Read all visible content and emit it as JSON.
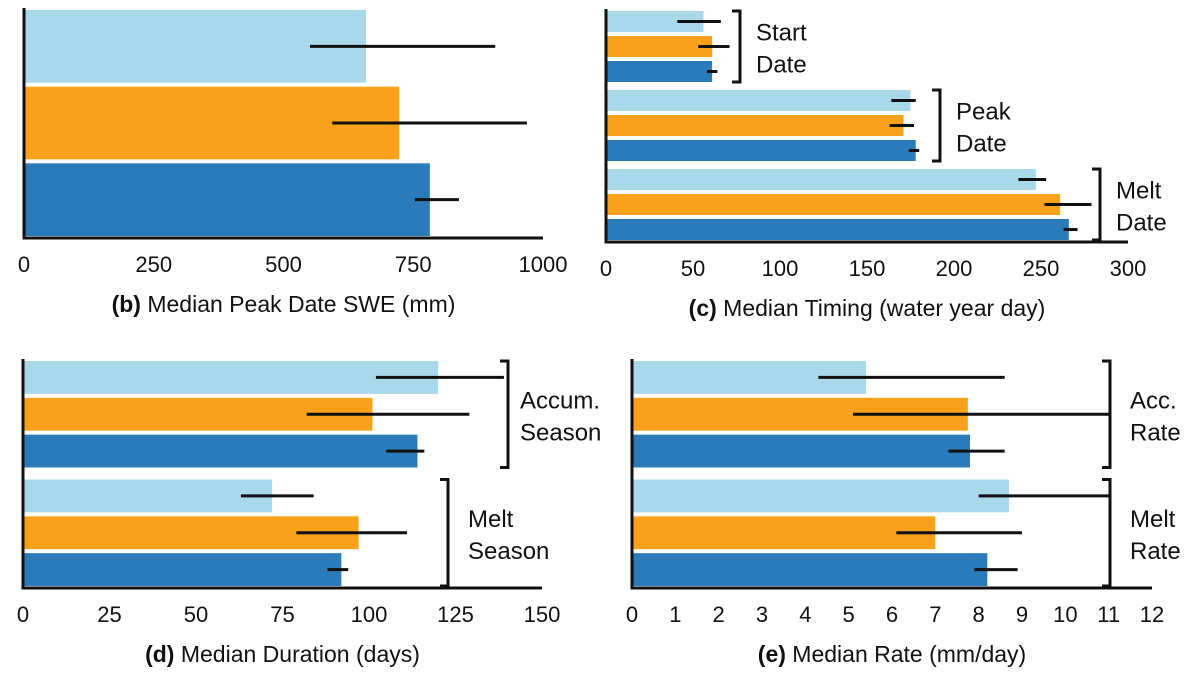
{
  "colors": [
    "#a8d8ea",
    "#f9a11b",
    "#2b7bba"
  ],
  "chart_data": [
    {
      "id": "b",
      "type": "bar",
      "orientation": "horizontal",
      "panel_label": "(b)",
      "xlabel": "Median Peak Date SWE (mm)",
      "xlim": [
        0,
        1000
      ],
      "ticks": [
        0,
        250,
        500,
        750,
        1000
      ],
      "groups": [
        {
          "label": [],
          "bars": [
            {
              "value": 659,
              "err": [
                551,
                908
              ]
            },
            {
              "value": 723,
              "err": [
                594,
                969
              ]
            },
            {
              "value": 782,
              "err": [
                753,
                838
              ]
            }
          ]
        }
      ]
    },
    {
      "id": "c",
      "type": "bar",
      "orientation": "horizontal",
      "panel_label": "(c)",
      "xlabel": "Median Timing (water year day)",
      "xlim": [
        0,
        300
      ],
      "ticks": [
        0,
        50,
        100,
        150,
        200,
        250,
        300
      ],
      "groups": [
        {
          "label": [
            "Start",
            "Date"
          ],
          "bars": [
            {
              "value": 56,
              "err": [
                41,
                66
              ]
            },
            {
              "value": 61,
              "err": [
                53,
                71
              ]
            },
            {
              "value": 61,
              "err": [
                58,
                64
              ]
            }
          ]
        },
        {
          "label": [
            "Peak",
            "Date"
          ],
          "bars": [
            {
              "value": 175,
              "err": [
                164,
                178
              ]
            },
            {
              "value": 171,
              "err": [
                163,
                177
              ]
            },
            {
              "value": 178,
              "err": [
                174,
                180
              ]
            }
          ]
        },
        {
          "label": [
            "Melt",
            "Date"
          ],
          "bars": [
            {
              "value": 247,
              "err": [
                237,
                253
              ]
            },
            {
              "value": 261,
              "err": [
                252,
                279
              ]
            },
            {
              "value": 266,
              "err": [
                263,
                271
              ]
            }
          ]
        }
      ]
    },
    {
      "id": "d",
      "type": "bar",
      "orientation": "horizontal",
      "panel_label": "(d)",
      "xlabel": "Median  Duration  (days)",
      "xlim": [
        0,
        150
      ],
      "ticks": [
        0,
        25,
        50,
        75,
        100,
        125,
        150
      ],
      "groups": [
        {
          "label": [
            "Accum.",
            "Season"
          ],
          "bars": [
            {
              "value": 120,
              "err": [
                102,
                139
              ]
            },
            {
              "value": 101,
              "err": [
                82,
                129
              ]
            },
            {
              "value": 114,
              "err": [
                105,
                116
              ]
            }
          ]
        },
        {
          "label": [
            "Melt",
            "Season"
          ],
          "bars": [
            {
              "value": 72,
              "err": [
                63,
                84
              ]
            },
            {
              "value": 97,
              "err": [
                79,
                111
              ]
            },
            {
              "value": 92,
              "err": [
                88,
                94
              ]
            }
          ]
        }
      ]
    },
    {
      "id": "e",
      "type": "bar",
      "orientation": "horizontal",
      "panel_label": "(e)",
      "xlabel": "Median Rate (mm/day)",
      "xlim": [
        0,
        12
      ],
      "ticks": [
        0,
        1,
        2,
        3,
        4,
        5,
        6,
        7,
        8,
        9,
        10,
        11,
        12
      ],
      "groups": [
        {
          "label": [
            "Acc.",
            "Rate"
          ],
          "bars": [
            {
              "value": 5.4,
              "err": [
                4.3,
                8.6
              ]
            },
            {
              "value": 7.75,
              "err": [
                5.1,
                11.0
              ]
            },
            {
              "value": 7.8,
              "err": [
                7.3,
                8.6
              ]
            }
          ]
        },
        {
          "label": [
            "Melt",
            "Rate"
          ],
          "bars": [
            {
              "value": 8.7,
              "err": [
                8.0,
                11.0
              ]
            },
            {
              "value": 7.0,
              "err": [
                6.1,
                9.0
              ]
            },
            {
              "value": 8.2,
              "err": [
                7.9,
                8.9
              ]
            }
          ]
        }
      ]
    }
  ]
}
